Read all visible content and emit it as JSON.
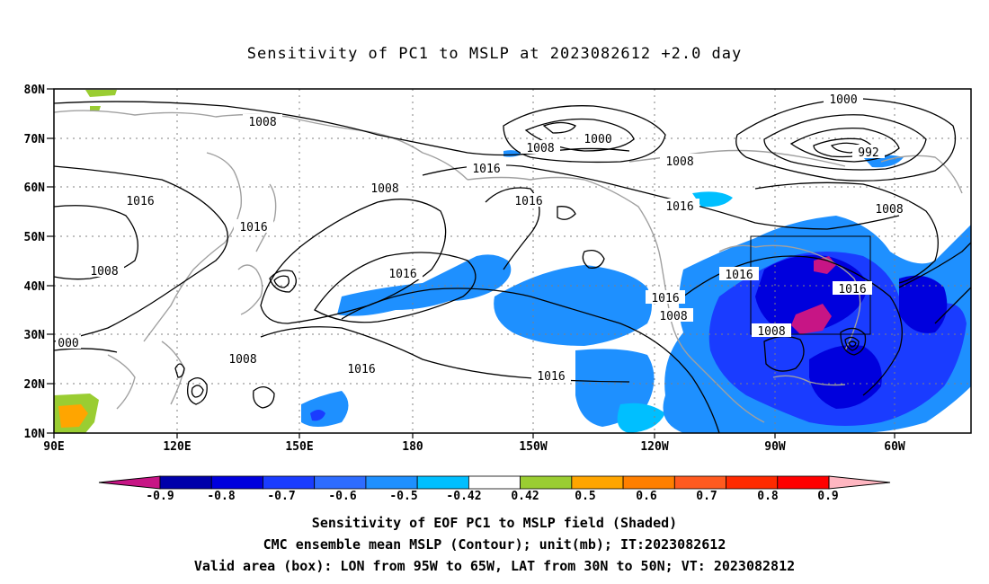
{
  "title": "Sensitivity of PC1 to MSLP at 2023082612 +2.0 day",
  "lat_labels": [
    "80N",
    "70N",
    "60N",
    "50N",
    "40N",
    "30N",
    "20N",
    "10N"
  ],
  "lon_labels": [
    "90E",
    "120E",
    "150E",
    "180",
    "150W",
    "120W",
    "90W",
    "60W"
  ],
  "contour_labels": [
    "1008",
    "1000",
    "1008",
    "1000",
    "1008",
    "992",
    "1016",
    "1016",
    "1008",
    "1016",
    "1016",
    "1016",
    "1016",
    "1008",
    "1016",
    "1008",
    "1016",
    "1016",
    "1008",
    "1008",
    "000",
    "1008",
    "1016",
    "1016",
    "1008"
  ],
  "colorbar": {
    "tick_labels": [
      "-0.9",
      "-0.8",
      "-0.7",
      "-0.6",
      "-0.5",
      "-0.42",
      "0.42",
      "0.5",
      "0.6",
      "0.7",
      "0.8",
      "0.9"
    ],
    "colors": [
      "#c71585",
      "#0000aa",
      "#0000dd",
      "#1a3cff",
      "#2e6cff",
      "#1e90ff",
      "#00bfff",
      "#ffffff",
      "#9acd32",
      "#ffa500",
      "#ff7f00",
      "#ff5a1f",
      "#ff2a00",
      "#ff0000",
      "#ffb6c1"
    ]
  },
  "captions": [
    "Sensitivity of EOF PC1 to MSLP field (Shaded)",
    "CMC ensemble mean MSLP (Contour); unit(mb); IT:2023082612",
    "Valid area (box): LON from 95W to 65W, LAT from 30N to 50N; VT: 2023082812"
  ],
  "valid_area": {
    "lon": [
      -95,
      -65
    ],
    "lat": [
      30,
      50
    ]
  }
}
